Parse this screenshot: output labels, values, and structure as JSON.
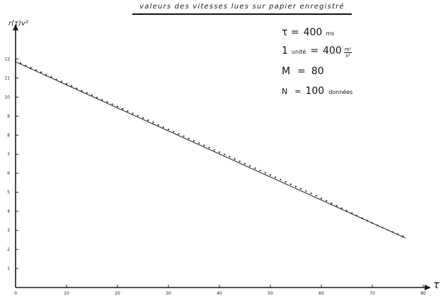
{
  "chart_data": {
    "type": "scatter",
    "title": "valeurs des vitesses lues sur papier enregistré",
    "ylabel": "r(τ)v²",
    "xlabel": "τ",
    "xlim": [
      0,
      80
    ],
    "ylim": [
      0,
      12.5
    ],
    "x_ticks": [
      "0",
      "10",
      "20",
      "30",
      "40",
      "50",
      "60",
      "70",
      "80"
    ],
    "y_ticks": [
      "1",
      "2",
      "3",
      "4",
      "5",
      "6",
      "7",
      "8",
      "9",
      "10",
      "11",
      "12"
    ],
    "grid": false,
    "legend": "none",
    "annotations": {
      "tau_label": "τ =",
      "tau_value": "400",
      "tau_unit": "ms",
      "unit_prefix": "1",
      "unit_word": "unité",
      "unit_eq": "=",
      "unit_value": "400",
      "unit_num": "m²",
      "unit_den": "s²",
      "m_label": "M",
      "m_eq": "=",
      "m_value": "80",
      "n_label": "N",
      "n_eq": "=",
      "n_value": "100",
      "n_unit": "données"
    },
    "fit_line": {
      "x": [
        0,
        76.5
      ],
      "y": [
        11.85,
        2.6
      ]
    },
    "series": [
      {
        "x": [
          0,
          1,
          2,
          3,
          4,
          5,
          6,
          7,
          8,
          9,
          10,
          11,
          12,
          13,
          14,
          15,
          16,
          17,
          18,
          19,
          20,
          21,
          22,
          23,
          24,
          25,
          26,
          27,
          28,
          29,
          30,
          31,
          32,
          33,
          34,
          35,
          36,
          37,
          38,
          39,
          40,
          41,
          42,
          43,
          44,
          45,
          46,
          47,
          48,
          49,
          50,
          51,
          52,
          53,
          54,
          55,
          56,
          57,
          58,
          59,
          60,
          61,
          62,
          63,
          64,
          65,
          66,
          67,
          68,
          69,
          70,
          71,
          72,
          73,
          74,
          75,
          76
        ],
        "y": [
          11.85,
          11.72,
          11.6,
          11.49,
          11.36,
          11.25,
          11.12,
          11.0,
          10.87,
          10.76,
          10.64,
          10.53,
          10.4,
          10.28,
          10.17,
          10.05,
          9.92,
          9.8,
          9.69,
          9.57,
          9.45,
          9.33,
          9.21,
          9.09,
          8.97,
          8.85,
          8.73,
          8.61,
          8.49,
          8.37,
          8.25,
          8.13,
          8.01,
          7.89,
          7.77,
          7.65,
          7.53,
          7.41,
          7.29,
          7.17,
          7.05,
          6.93,
          6.81,
          6.69,
          6.57,
          6.45,
          6.33,
          6.21,
          6.09,
          5.97,
          5.85,
          5.73,
          5.61,
          5.49,
          5.37,
          5.25,
          5.13,
          5.01,
          4.89,
          4.77,
          4.63,
          4.5,
          4.37,
          4.24,
          4.11,
          3.98,
          3.85,
          3.72,
          3.59,
          3.46,
          3.33,
          3.21,
          3.09,
          2.97,
          2.86,
          2.75,
          2.65
        ]
      }
    ],
    "colors": {
      "ink": "#1a1a1a",
      "points": "#2a2a2a"
    }
  }
}
